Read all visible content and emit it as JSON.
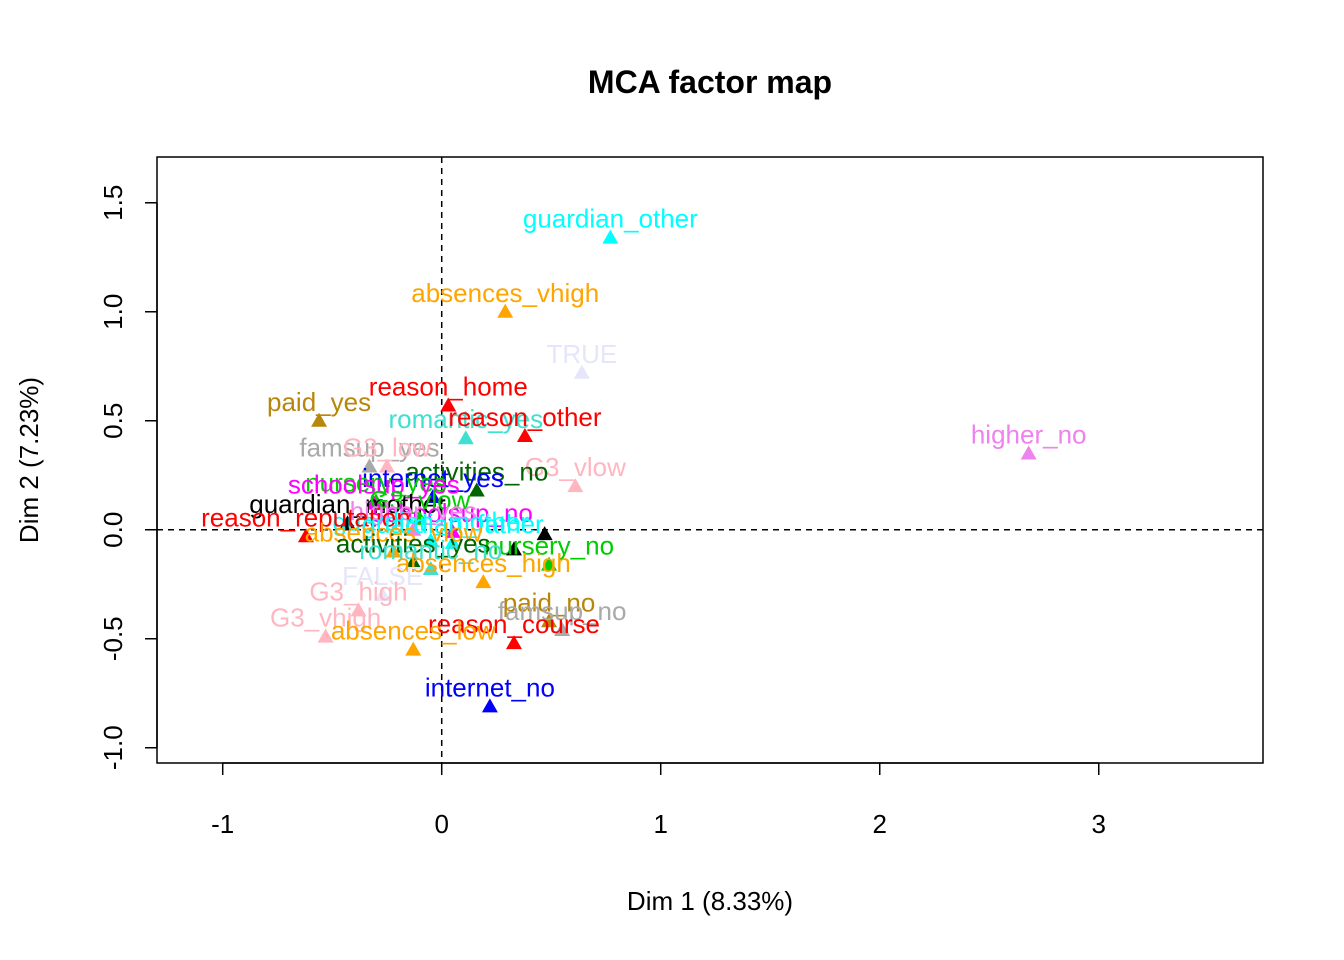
{
  "chart_data": {
    "type": "scatter",
    "title": "MCA factor map",
    "xlabel": "Dim 1 (8.33%)",
    "ylabel": "Dim 2 (7.23%)",
    "xlim": [
      -1.3,
      3.75
    ],
    "ylim": [
      -1.07,
      1.71
    ],
    "xticks": [
      -1,
      0,
      1,
      2,
      3
    ],
    "xtick_labels": [
      "-1",
      "0",
      "1",
      "2",
      "3"
    ],
    "yticks": [
      -1.0,
      -0.5,
      0.0,
      0.5,
      1.0,
      1.5
    ],
    "ytick_labels": [
      "-1.0",
      "-0.5",
      "0.0",
      "0.5",
      "1.0",
      "1.5"
    ],
    "reference_lines": {
      "x": 0,
      "y": 0
    },
    "marker": "triangle",
    "points": [
      {
        "label": "guardian_other",
        "x": 0.77,
        "y": 1.34,
        "color": "#00FFFF"
      },
      {
        "label": "absences_vhigh",
        "x": 0.29,
        "y": 1.0,
        "color": "#FFA500"
      },
      {
        "label": "TRUE",
        "x": 0.64,
        "y": 0.72,
        "color": "#E6E6FA"
      },
      {
        "label": "reason_home",
        "x": 0.03,
        "y": 0.57,
        "color": "#FF0000"
      },
      {
        "label": "paid_yes",
        "x": -0.56,
        "y": 0.5,
        "color": "#B8860B"
      },
      {
        "label": "romantic_yes",
        "x": 0.11,
        "y": 0.42,
        "color": "#40E0D0"
      },
      {
        "label": "reason_other",
        "x": 0.38,
        "y": 0.43,
        "color": "#FF0000"
      },
      {
        "label": "higher_no",
        "x": 2.68,
        "y": 0.35,
        "color": "#EE82EE"
      },
      {
        "label": "famsup_yes",
        "x": -0.33,
        "y": 0.29,
        "color": "#A9A9A9"
      },
      {
        "label": "G3_low",
        "x": -0.25,
        "y": 0.29,
        "color": "#FFB6C1"
      },
      {
        "label": "G3_vlow",
        "x": 0.61,
        "y": 0.2,
        "color": "#FFB6C1"
      },
      {
        "label": "activities_no",
        "x": 0.16,
        "y": 0.18,
        "color": "#006400"
      },
      {
        "label": "internet_yes",
        "x": -0.04,
        "y": 0.15,
        "color": "#0000FF"
      },
      {
        "label": "nursery_yes",
        "x": -0.3,
        "y": 0.13,
        "color": "#00CD00"
      },
      {
        "label": "schoolsup_yes",
        "x": -0.31,
        "y": 0.12,
        "color": "#FF00FF"
      },
      {
        "label": "guardian_mother",
        "x": -0.43,
        "y": 0.03,
        "color": "#000000"
      },
      {
        "label": "G3_vlow",
        "x": -0.1,
        "y": 0.05,
        "color": "#00CD00"
      },
      {
        "label": "schoolsup_no",
        "x": 0.05,
        "y": -0.01,
        "color": "#FF00FF"
      },
      {
        "label": "higher_yes",
        "x": -0.13,
        "y": 0.0,
        "color": "#EE82EE"
      },
      {
        "label": "",
        "x": 0.47,
        "y": -0.02,
        "color": "#000000"
      },
      {
        "label": "guardian_mother",
        "x": -0.05,
        "y": -0.05,
        "color": "#00FFFF"
      },
      {
        "label": "reason_reputation",
        "x": -0.62,
        "y": -0.03,
        "color": "#FF0000"
      },
      {
        "label": "",
        "x": 0.33,
        "y": -0.09,
        "color": "#000000"
      },
      {
        "label": "nursery_no",
        "x": 0.49,
        "y": -0.16,
        "color": "#00CD00"
      },
      {
        "label": "guardian_father",
        "x": 0.05,
        "y": -0.06,
        "color": "#00FFFF"
      },
      {
        "label": "absences_vlow",
        "x": -0.22,
        "y": -0.1,
        "color": "#FFA500"
      },
      {
        "label": "activities_yes",
        "x": -0.13,
        "y": -0.15,
        "color": "#006400"
      },
      {
        "label": "romantic_no",
        "x": -0.05,
        "y": -0.18,
        "color": "#40E0D0"
      },
      {
        "label": "absences_high",
        "x": 0.19,
        "y": -0.24,
        "color": "#FFA500"
      },
      {
        "label": "FALSE",
        "x": -0.27,
        "y": -0.3,
        "color": "#E6E6FA"
      },
      {
        "label": "G3_high",
        "x": -0.38,
        "y": -0.37,
        "color": "#FFB6C1"
      },
      {
        "label": "paid_no",
        "x": 0.49,
        "y": -0.42,
        "color": "#B8860B"
      },
      {
        "label": "famsup_no",
        "x": 0.55,
        "y": -0.46,
        "color": "#A9A9A9"
      },
      {
        "label": "G3_vhigh",
        "x": -0.53,
        "y": -0.49,
        "color": "#FFB6C1"
      },
      {
        "label": "reason_course",
        "x": 0.33,
        "y": -0.52,
        "color": "#FF0000"
      },
      {
        "label": "absences_low",
        "x": -0.13,
        "y": -0.55,
        "color": "#FFA500"
      },
      {
        "label": "internet_no",
        "x": 0.22,
        "y": -0.81,
        "color": "#0000FF"
      }
    ]
  }
}
